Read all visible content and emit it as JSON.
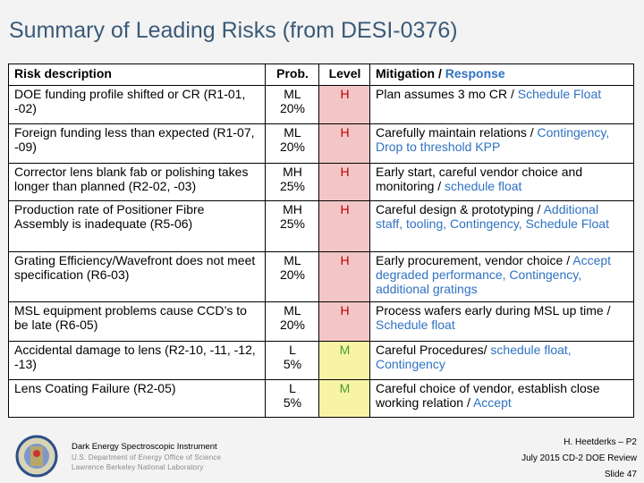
{
  "slide": {
    "title": "Summary of Leading Risks (from DESI-0376)"
  },
  "table": {
    "headers": {
      "risk": "Risk description",
      "prob": "Prob.",
      "level": "Level",
      "mitigation": "Mitigation",
      "separator": " / ",
      "response": "Response"
    },
    "rows": [
      {
        "risk": "DOE funding profile shifted or CR (R1-01, -02)",
        "prob": "ML",
        "pct": "20%",
        "level": "H",
        "mitigation": "Plan assumes 3 mo CR",
        "sep": " / ",
        "response": "Schedule Float"
      },
      {
        "risk": "Foreign funding less than expected (R1-07,  -09)",
        "prob": "ML",
        "pct": "20%",
        "level": "H",
        "mitigation": "Carefully maintain relations",
        "sep": " / ",
        "response": "Contingency, Drop to threshold KPP"
      },
      {
        "risk": "Corrector lens blank fab or polishing takes longer than planned (R2-02, -03)",
        "prob": "MH",
        "pct": "25%",
        "level": "H",
        "mitigation": "Early start, careful vendor choice and monitoring",
        "sep": " / ",
        "response": "schedule float"
      },
      {
        "risk": "Production rate of Positioner Fibre Assembly  is inadequate (R5-06)",
        "prob": "MH",
        "pct": "25%",
        "level": "H",
        "mitigation": "Careful design & prototyping",
        "sep": " / ",
        "response": "Additional staff, tooling, Contingency, Schedule Float"
      },
      {
        "risk": "Grating Efficiency/Wavefront does not meet specification (R6-03)",
        "prob": "ML",
        "pct": "20%",
        "level": "H",
        "mitigation": "Early procurement, vendor choice",
        "sep": " / ",
        "response": "Accept degraded performance, Contingency, additional gratings"
      },
      {
        "risk": "MSL  equipment problems cause CCD’s to be late  (R6-05)",
        "prob": "ML",
        "pct": "20%",
        "level": "H",
        "mitigation": "Process wafers early during MSL up time",
        "sep": " / ",
        "response": "Schedule float"
      },
      {
        "risk": "Accidental damage to lens (R2-10, -11, -12, -13)",
        "prob": "L",
        "pct": "5%",
        "level": "M",
        "mitigation": "Careful Procedures",
        "sep": "/ ",
        "response": "schedule float, Contingency"
      },
      {
        "risk": "Lens Coating Failure  (R2-05)",
        "prob": "L",
        "pct": "5%",
        "level": "M",
        "mitigation": "Careful choice of vendor, establish close working relation",
        "sep": " / ",
        "response": "Accept"
      }
    ]
  },
  "footer": {
    "org_name": "Dark Energy Spectroscopic Instrument",
    "org_line2": "U.S. Department of Energy Office of Science",
    "org_line3": "Lawrence Berkeley National Laboratory",
    "presenter": "H. Heetderks – P2",
    "event": "July 2015 CD-2 DOE Review",
    "slide_number": "Slide 47"
  },
  "colors": {
    "high_bg": "#f2c6c6",
    "high_text": "#c00000",
    "medium_bg": "#f8f4a6",
    "medium_text": "#4a9c2d",
    "response": "#2f72c2"
  }
}
